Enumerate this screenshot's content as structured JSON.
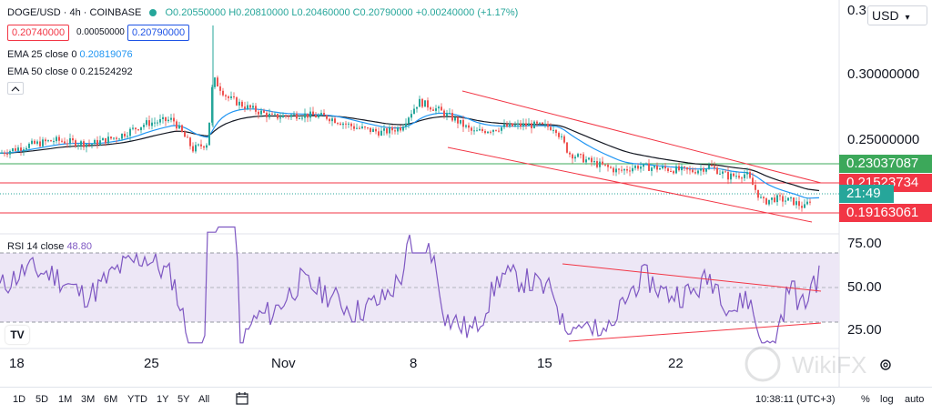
{
  "symbol": {
    "pair": "DOGE/USD",
    "interval": "4h",
    "exchange": "COINBASE",
    "ohlc": "O0.20550000 H0.20810000 L0.20460000 C0.20790000 +0.00240000 (+1.17%)",
    "sell_price": "0.20740000",
    "spread": "0.00050000",
    "buy_price": "0.20790000"
  },
  "indicators": {
    "ema25_label": "EMA 25 close 0",
    "ema25_value": "0.20819076",
    "ema50_label": "EMA 50 close 0",
    "ema50_value": "0.21524292",
    "rsi_label": "RSI 14 close",
    "rsi_value": "48.80"
  },
  "currency": "USD",
  "price_axis": {
    "top_partial": "0.3",
    "labels": [
      "0.30000000",
      "0.25000000"
    ],
    "tag_green": "0.23037087",
    "tag_red_top": "0.21523734",
    "tag_countdown": "21:49",
    "tag_red_bottom": "0.19163061"
  },
  "rsi_axis": [
    "75.00",
    "50.00",
    "25.00"
  ],
  "time_axis": [
    "18",
    "25",
    "Nov",
    "8",
    "15",
    "22"
  ],
  "bottom_bar": {
    "ranges": [
      "1D",
      "5D",
      "1M",
      "3M",
      "6M",
      "YTD",
      "1Y",
      "5Y",
      "All"
    ],
    "clock": "10:38:11 (UTC+3)",
    "percent": "%",
    "log": "log",
    "auto": "auto"
  },
  "watermark": "WikiFX",
  "colors": {
    "candle_up": "#26a69a",
    "candle_down": "#ef5350",
    "ema25": "#2196f3",
    "ema50": "#131722",
    "trendline": "#f23645",
    "rsi_line": "#7e57c2",
    "rsi_band": "#ede7f6",
    "tag_green": "#3ca85a",
    "tag_red": "#f23645",
    "tag_teal": "#26a69a"
  },
  "chart_data": {
    "type": "candlestick",
    "series": [
      {
        "name": "DOGE/USD",
        "x": [
          "18",
          "25",
          "Nov",
          "8",
          "15",
          "22"
        ],
        "values": [
          0.245,
          0.262,
          0.27,
          0.272,
          0.248,
          0.215
        ]
      },
      {
        "name": "EMA 25 close 0",
        "values": [
          0.245,
          0.252,
          0.268,
          0.266,
          0.252,
          0.225
        ]
      },
      {
        "name": "EMA 50 close 0",
        "values": [
          0.245,
          0.25,
          0.265,
          0.264,
          0.255,
          0.23
        ]
      },
      {
        "name": "RSI 14 close",
        "values": [
          60,
          55,
          50,
          70,
          35,
          48.8
        ]
      }
    ],
    "ylim": [
      0.18,
      0.33
    ],
    "rsi_ylim": [
      15,
      85
    ]
  }
}
